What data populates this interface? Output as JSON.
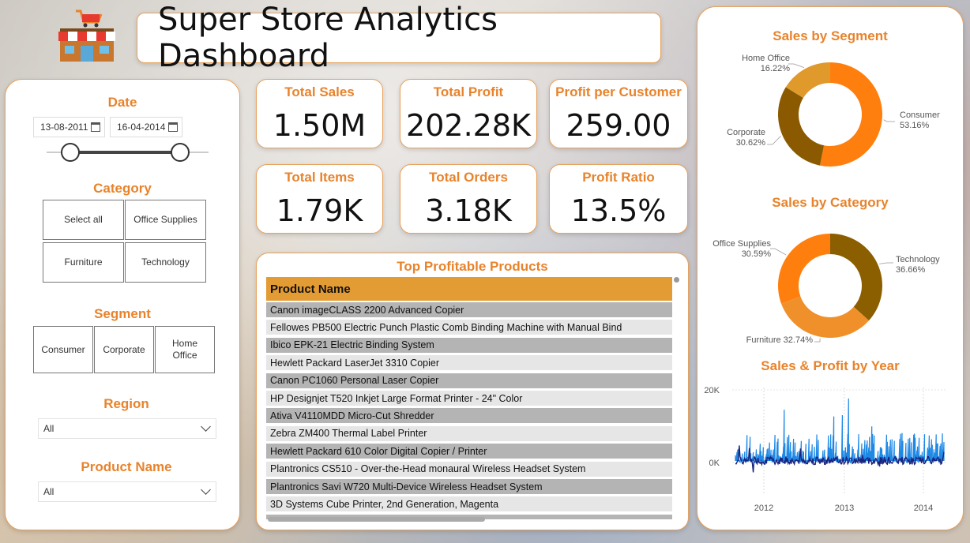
{
  "header": {
    "title": "Super Store Analytics Dashboard",
    "store_icon": "store-building-icon"
  },
  "filters": {
    "date": {
      "label": "Date",
      "start": "13-08-2011",
      "end": "16-04-2014",
      "icon": "calendar-icon"
    },
    "category": {
      "label": "Category",
      "options": [
        "Select all",
        "Office Supplies",
        "Furniture",
        "Technology"
      ]
    },
    "segment": {
      "label": "Segment",
      "options": [
        "Consumer",
        "Corporate",
        "Home Office"
      ]
    },
    "region": {
      "label": "Region",
      "value": "All"
    },
    "product_name": {
      "label": "Product Name",
      "value": "All"
    }
  },
  "kpis": [
    {
      "label": "Total Sales",
      "value": "1.50M"
    },
    {
      "label": "Total Profit",
      "value": "202.28K"
    },
    {
      "label": "Profit per Customer",
      "value": "259.00"
    },
    {
      "label": "Total Items",
      "value": "1.79K"
    },
    {
      "label": "Total Orders",
      "value": "3.18K"
    },
    {
      "label": "Profit Ratio",
      "value": "13.5%"
    }
  ],
  "top_products": {
    "title": "Top Profitable Products",
    "column": "Product Name",
    "rows": [
      "Canon imageCLASS 2200 Advanced Copier",
      "Fellowes PB500 Electric Punch Plastic Comb Binding Machine with Manual Bind",
      "Ibico EPK-21 Electric Binding System",
      "Hewlett Packard LaserJet 3310 Copier",
      "Canon PC1060 Personal Laser Copier",
      "HP Designjet T520 Inkjet Large Format Printer - 24\" Color",
      "Ativa V4110MDD Micro-Cut Shredder",
      "Zebra ZM400 Thermal Label Printer",
      "Hewlett Packard 610 Color Digital Copier / Printer",
      "Plantronics CS510 - Over-the-Head monaural Wireless Headset System",
      "Plantronics Savi W720 Multi-Device Wireless Headset System",
      "3D Systems Cube Printer, 2nd Generation, Magenta"
    ]
  },
  "colors": {
    "accent": "#e8832b",
    "consumer": "#ff7f0e",
    "corporate": "#8b5a00",
    "home_office": "#e09a2c",
    "technology": "#8b5e00",
    "furniture": "#f0902b",
    "office_supplies": "#ff7f0e",
    "sales_line": "#1e88e5",
    "profit_line": "#1a237e"
  },
  "chart_data": [
    {
      "type": "pie",
      "title": "Sales by Segment",
      "categories": [
        "Consumer",
        "Corporate",
        "Home Office"
      ],
      "values": [
        53.16,
        30.62,
        16.22
      ],
      "labels": [
        "Consumer\n53.16%",
        "Corporate\n30.62%",
        "Home Office\n16.22%"
      ],
      "donut": true
    },
    {
      "type": "pie",
      "title": "Sales by Category",
      "categories": [
        "Technology",
        "Furniture",
        "Office Supplies"
      ],
      "values": [
        36.66,
        32.74,
        30.59
      ],
      "labels": [
        "Technology\n36.66%",
        "Furniture 32.74%",
        "Office Supplies\n30.59%"
      ],
      "donut": true
    },
    {
      "type": "line",
      "title": "Sales & Profit by Year",
      "ylim": [
        -3000,
        24000
      ],
      "yticks": [
        "20K",
        "0K"
      ],
      "xticks": [
        "2012",
        "2013",
        "2014"
      ],
      "series": []
    }
  ]
}
